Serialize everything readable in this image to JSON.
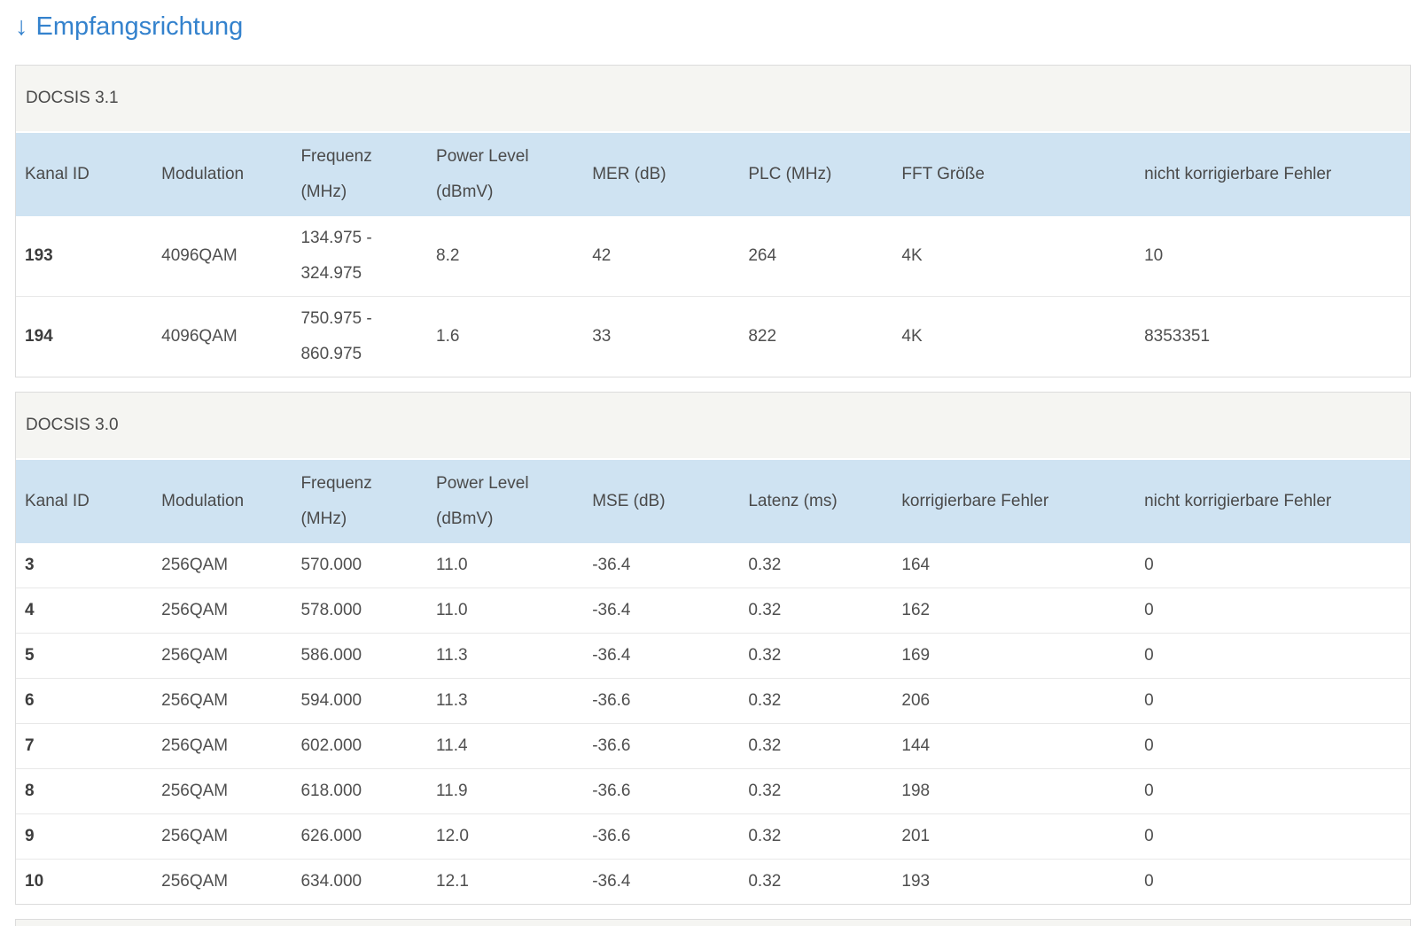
{
  "heading": {
    "arrow": "↓",
    "title": "Empfangsrichtung"
  },
  "colors": {
    "title_blue": "#3482cd",
    "table_header_bg": "#cfe3f2",
    "section_header_bg": "#f5f5f2",
    "border": "#dcdcdc",
    "row_divider": "#e8e8e8",
    "text": "#4f4f4f"
  },
  "tables": [
    {
      "section_title": "DOCSIS 3.1",
      "columns": [
        "Kanal ID",
        "Modulation",
        "Frequenz (MHz)",
        "Power Level\n(dBmV)",
        "MER (dB)",
        "PLC (MHz)",
        "FFT Größe",
        "nicht korrigierbare Fehler"
      ],
      "rows": [
        [
          "193",
          "4096QAM",
          "134.975 -\n324.975",
          "8.2",
          "42",
          "264",
          "4K",
          "10"
        ],
        [
          "194",
          "4096QAM",
          "750.975 -\n860.975",
          "1.6",
          "33",
          "822",
          "4K",
          "8353351"
        ]
      ]
    },
    {
      "section_title": "DOCSIS 3.0",
      "columns": [
        "Kanal ID",
        "Modulation",
        "Frequenz (MHz)",
        "Power Level\n(dBmV)",
        "MSE (dB)",
        "Latenz (ms)",
        "korrigierbare Fehler",
        "nicht korrigierbare Fehler"
      ],
      "rows": [
        [
          "3",
          "256QAM",
          "570.000",
          "11.0",
          "-36.4",
          "0.32",
          "164",
          "0"
        ],
        [
          "4",
          "256QAM",
          "578.000",
          "11.0",
          "-36.4",
          "0.32",
          "162",
          "0"
        ],
        [
          "5",
          "256QAM",
          "586.000",
          "11.3",
          "-36.4",
          "0.32",
          "169",
          "0"
        ],
        [
          "6",
          "256QAM",
          "594.000",
          "11.3",
          "-36.6",
          "0.32",
          "206",
          "0"
        ],
        [
          "7",
          "256QAM",
          "602.000",
          "11.4",
          "-36.6",
          "0.32",
          "144",
          "0"
        ],
        [
          "8",
          "256QAM",
          "618.000",
          "11.9",
          "-36.6",
          "0.32",
          "198",
          "0"
        ],
        [
          "9",
          "256QAM",
          "626.000",
          "12.0",
          "-36.6",
          "0.32",
          "201",
          "0"
        ],
        [
          "10",
          "256QAM",
          "634.000",
          "12.1",
          "-36.4",
          "0.32",
          "193",
          "0"
        ]
      ]
    }
  ]
}
